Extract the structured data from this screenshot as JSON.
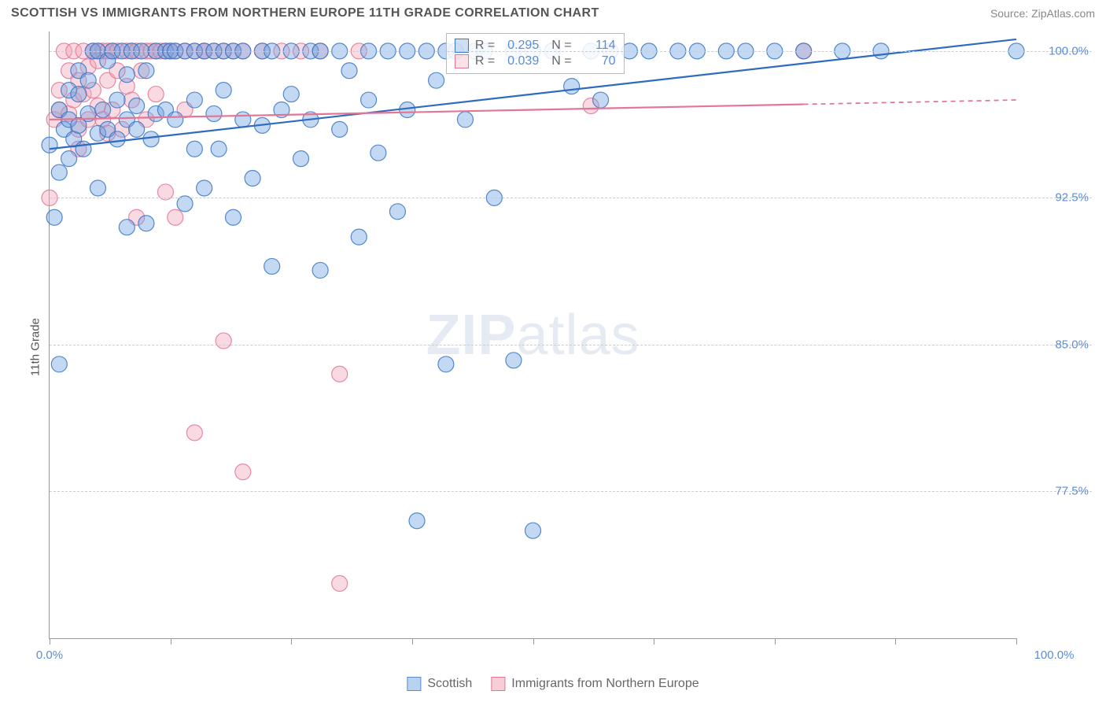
{
  "header": {
    "title": "SCOTTISH VS IMMIGRANTS FROM NORTHERN EUROPE 11TH GRADE CORRELATION CHART",
    "source_prefix": "Source: ",
    "source_link": "ZipAtlas.com"
  },
  "chart": {
    "type": "scatter",
    "ylabel": "11th Grade",
    "watermark": {
      "part1": "ZIP",
      "part2": "atlas"
    },
    "background_color": "#ffffff",
    "grid_color": "#cccccc",
    "axis_color": "#999999",
    "xlim": [
      0,
      100
    ],
    "ylim": [
      70,
      101
    ],
    "x_ticks": [
      0,
      12.5,
      25,
      37.5,
      50,
      62.5,
      75,
      87.5,
      100
    ],
    "x_tick_labels": {
      "0": "0.0%",
      "100": "100.0%"
    },
    "y_gridlines": [
      77.5,
      85.0,
      92.5,
      100.0
    ],
    "y_tick_labels": [
      "77.5%",
      "85.0%",
      "92.5%",
      "100.0%"
    ],
    "marker_radius": 10,
    "marker_opacity": 0.42,
    "marker_stroke_opacity": 0.85,
    "line_width": 2.2,
    "series": [
      {
        "name": "Scottish",
        "fill_color": "#6fa3e0",
        "stroke_color": "#3a76c4",
        "line_color": "#2f6bbf",
        "R": "0.295",
        "N": "114",
        "trend": {
          "x1": 0,
          "y1": 95.0,
          "x2": 100,
          "y2": 100.6,
          "dash_from": 100
        },
        "points": [
          [
            0,
            95.2
          ],
          [
            0.5,
            91.5
          ],
          [
            1,
            93.8
          ],
          [
            1,
            84.0
          ],
          [
            1,
            97.0
          ],
          [
            1.5,
            96.0
          ],
          [
            2,
            96.5
          ],
          [
            2,
            94.5
          ],
          [
            2,
            98.0
          ],
          [
            2.5,
            95.5
          ],
          [
            3,
            96.2
          ],
          [
            3,
            97.8
          ],
          [
            3,
            99.0
          ],
          [
            3.5,
            95.0
          ],
          [
            4,
            96.8
          ],
          [
            4,
            98.5
          ],
          [
            4.5,
            100.0
          ],
          [
            5,
            95.8
          ],
          [
            5,
            100.0
          ],
          [
            5,
            93.0
          ],
          [
            5.5,
            97.0
          ],
          [
            6,
            96.0
          ],
          [
            6,
            99.5
          ],
          [
            6.5,
            100.0
          ],
          [
            7,
            97.5
          ],
          [
            7,
            95.5
          ],
          [
            7.5,
            100.0
          ],
          [
            8,
            91.0
          ],
          [
            8,
            96.5
          ],
          [
            8,
            98.8
          ],
          [
            8.5,
            100.0
          ],
          [
            9,
            96.0
          ],
          [
            9,
            97.2
          ],
          [
            9.5,
            100.0
          ],
          [
            10,
            91.2
          ],
          [
            10,
            99.0
          ],
          [
            10.5,
            95.5
          ],
          [
            11,
            100.0
          ],
          [
            11,
            96.8
          ],
          [
            12,
            100.0
          ],
          [
            12,
            97.0
          ],
          [
            12.5,
            100.0
          ],
          [
            13,
            96.5
          ],
          [
            13,
            100.0
          ],
          [
            14,
            100.0
          ],
          [
            14,
            92.2
          ],
          [
            15,
            100.0
          ],
          [
            15,
            97.5
          ],
          [
            15,
            95.0
          ],
          [
            16,
            100.0
          ],
          [
            16,
            93.0
          ],
          [
            17,
            100.0
          ],
          [
            17,
            96.8
          ],
          [
            17.5,
            95.0
          ],
          [
            18,
            100.0
          ],
          [
            18,
            98.0
          ],
          [
            19,
            91.5
          ],
          [
            19,
            100.0
          ],
          [
            20,
            100.0
          ],
          [
            20,
            96.5
          ],
          [
            21,
            93.5
          ],
          [
            22,
            100.0
          ],
          [
            22,
            96.2
          ],
          [
            23,
            89.0
          ],
          [
            23,
            100.0
          ],
          [
            24,
            97.0
          ],
          [
            25,
            100.0
          ],
          [
            25,
            97.8
          ],
          [
            26,
            94.5
          ],
          [
            27,
            100.0
          ],
          [
            27,
            96.5
          ],
          [
            28,
            100.0
          ],
          [
            28,
            88.8
          ],
          [
            30,
            100.0
          ],
          [
            30,
            96.0
          ],
          [
            31,
            99.0
          ],
          [
            32,
            90.5
          ],
          [
            33,
            100.0
          ],
          [
            33,
            97.5
          ],
          [
            34,
            94.8
          ],
          [
            35,
            100.0
          ],
          [
            36,
            91.8
          ],
          [
            37,
            100.0
          ],
          [
            37,
            97.0
          ],
          [
            38,
            76.0
          ],
          [
            39,
            100.0
          ],
          [
            40,
            98.5
          ],
          [
            41,
            100.0
          ],
          [
            41,
            84.0
          ],
          [
            42,
            100.0
          ],
          [
            43,
            96.5
          ],
          [
            44,
            100.0
          ],
          [
            45,
            100.0
          ],
          [
            46,
            92.5
          ],
          [
            48,
            100.0
          ],
          [
            48,
            84.2
          ],
          [
            50,
            100.0
          ],
          [
            50,
            75.5
          ],
          [
            52,
            100.0
          ],
          [
            54,
            98.2
          ],
          [
            56,
            100.0
          ],
          [
            57,
            97.5
          ],
          [
            58,
            100.0
          ],
          [
            60,
            100.0
          ],
          [
            62,
            100.0
          ],
          [
            65,
            100.0
          ],
          [
            67,
            100.0
          ],
          [
            70,
            100.0
          ],
          [
            72,
            100.0
          ],
          [
            75,
            100.0
          ],
          [
            78,
            100.0
          ],
          [
            82,
            100.0
          ],
          [
            86,
            100.0
          ],
          [
            100,
            100.0
          ]
        ]
      },
      {
        "name": "Immigrants from Northern Europe",
        "fill_color": "#f2a8bb",
        "stroke_color": "#e37694",
        "line_color": "#e37694",
        "R": "0.039",
        "N": "70",
        "trend": {
          "x1": 0,
          "y1": 96.5,
          "x2": 100,
          "y2": 97.5,
          "dash_from": 78
        },
        "points": [
          [
            0,
            92.5
          ],
          [
            0.5,
            96.5
          ],
          [
            1,
            98.0
          ],
          [
            1,
            97.0
          ],
          [
            1.5,
            100.0
          ],
          [
            2,
            96.8
          ],
          [
            2,
            99.0
          ],
          [
            2.5,
            97.5
          ],
          [
            2.5,
            100.0
          ],
          [
            3,
            96.0
          ],
          [
            3,
            98.5
          ],
          [
            3,
            95.0
          ],
          [
            3.5,
            100.0
          ],
          [
            3.5,
            97.8
          ],
          [
            4,
            99.2
          ],
          [
            4,
            96.5
          ],
          [
            4.5,
            100.0
          ],
          [
            4.5,
            98.0
          ],
          [
            5,
            100.0
          ],
          [
            5,
            97.2
          ],
          [
            5,
            99.5
          ],
          [
            5.5,
            96.5
          ],
          [
            5.5,
            100.0
          ],
          [
            6,
            98.5
          ],
          [
            6,
            95.8
          ],
          [
            6,
            100.0
          ],
          [
            6.5,
            97.0
          ],
          [
            6.5,
            100.0
          ],
          [
            7,
            99.0
          ],
          [
            7,
            100.0
          ],
          [
            7.5,
            96.0
          ],
          [
            8,
            100.0
          ],
          [
            8,
            98.2
          ],
          [
            8.5,
            97.5
          ],
          [
            8.5,
            100.0
          ],
          [
            9,
            100.0
          ],
          [
            9,
            91.5
          ],
          [
            9.5,
            99.0
          ],
          [
            10,
            100.0
          ],
          [
            10,
            96.5
          ],
          [
            10.5,
            100.0
          ],
          [
            11,
            97.8
          ],
          [
            11,
            100.0
          ],
          [
            11.5,
            100.0
          ],
          [
            12,
            92.8
          ],
          [
            12,
            100.0
          ],
          [
            12.5,
            100.0
          ],
          [
            13,
            91.5
          ],
          [
            13,
            100.0
          ],
          [
            14,
            100.0
          ],
          [
            14,
            97.0
          ],
          [
            15,
            100.0
          ],
          [
            15,
            80.5
          ],
          [
            16,
            100.0
          ],
          [
            16,
            100.0
          ],
          [
            17,
            100.0
          ],
          [
            18,
            100.0
          ],
          [
            18,
            85.2
          ],
          [
            19,
            100.0
          ],
          [
            20,
            100.0
          ],
          [
            20,
            78.5
          ],
          [
            22,
            100.0
          ],
          [
            24,
            100.0
          ],
          [
            26,
            100.0
          ],
          [
            28,
            100.0
          ],
          [
            30,
            72.8
          ],
          [
            30,
            83.5
          ],
          [
            32,
            100.0
          ],
          [
            56,
            97.2
          ],
          [
            78,
            100.0
          ]
        ]
      }
    ],
    "legend_top": {
      "R_label": "R =",
      "N_label": "N ="
    },
    "legend_bottom": [
      {
        "label": "Scottish",
        "fill": "#b8d2f0",
        "stroke": "#5b8dd6"
      },
      {
        "label": "Immigrants from Northern Europe",
        "fill": "#f7cdd8",
        "stroke": "#e37694"
      }
    ]
  }
}
